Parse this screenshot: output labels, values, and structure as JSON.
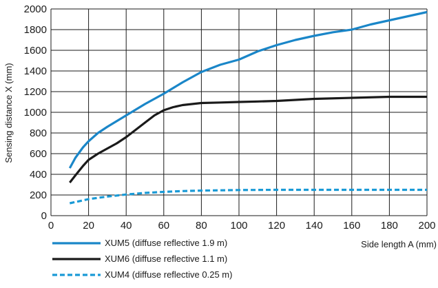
{
  "chart_data": {
    "type": "line",
    "xlabel": "Side length A (mm)",
    "ylabel": "Sensing distance X (mm)",
    "xlim": [
      0,
      200
    ],
    "ylim": [
      0,
      2000
    ],
    "xticks": [
      0,
      20,
      40,
      60,
      80,
      100,
      120,
      140,
      160,
      180,
      200
    ],
    "yticks": [
      0,
      200,
      400,
      600,
      800,
      1000,
      1200,
      1400,
      1600,
      1800,
      2000
    ],
    "grid": true,
    "legend_position": "bottom-left",
    "series": [
      {
        "name": "XUM5 (diffuse reflective 1.9 m)",
        "color": "#1a86c8",
        "style": "solid",
        "x": [
          10,
          13,
          17,
          20,
          25,
          30,
          40,
          50,
          60,
          70,
          80,
          90,
          100,
          110,
          120,
          130,
          140,
          150,
          160,
          170,
          180,
          190,
          200
        ],
        "y": [
          460,
          560,
          660,
          720,
          800,
          860,
          970,
          1080,
          1180,
          1290,
          1390,
          1460,
          1510,
          1590,
          1650,
          1700,
          1740,
          1775,
          1800,
          1850,
          1890,
          1930,
          1970
        ]
      },
      {
        "name": "XUM6 (diffuse reflective 1.1 m)",
        "color": "#1a1a1a",
        "style": "solid",
        "x": [
          10,
          13,
          17,
          20,
          25,
          30,
          35,
          40,
          45,
          50,
          55,
          60,
          65,
          70,
          80,
          90,
          100,
          110,
          120,
          140,
          160,
          180,
          200
        ],
        "y": [
          320,
          390,
          480,
          540,
          600,
          650,
          700,
          760,
          830,
          900,
          970,
          1020,
          1050,
          1070,
          1090,
          1095,
          1100,
          1105,
          1110,
          1130,
          1140,
          1150,
          1150
        ]
      },
      {
        "name": "XUM4 (diffuse reflective 0.25 m)",
        "color": "#1a9ad6",
        "style": "dashed",
        "x": [
          10,
          20,
          30,
          40,
          50,
          60,
          70,
          80,
          100,
          120,
          140,
          160,
          180,
          200
        ],
        "y": [
          120,
          160,
          185,
          205,
          220,
          230,
          238,
          243,
          248,
          250,
          250,
          250,
          250,
          250
        ]
      }
    ]
  }
}
